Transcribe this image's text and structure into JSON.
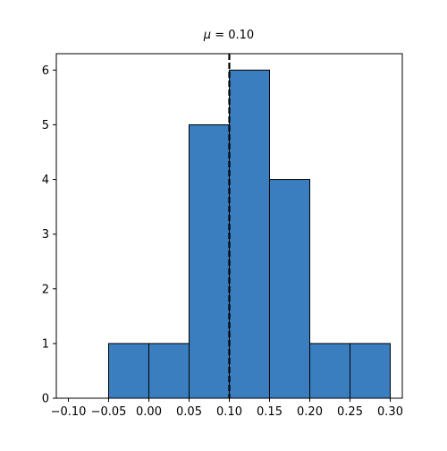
{
  "chart_data": {
    "type": "bar",
    "title_symbol": "μ",
    "title_rest": " = 0.10",
    "xlabel": "",
    "ylabel": "",
    "bin_edges": [
      -0.05,
      0.0,
      0.05,
      0.1,
      0.15,
      0.2,
      0.25,
      0.3
    ],
    "counts": [
      1,
      1,
      5,
      6,
      4,
      1,
      1
    ],
    "xlim": [
      -0.115,
      0.315
    ],
    "ylim": [
      0,
      6.3
    ],
    "xticks": [
      -0.1,
      -0.05,
      0.0,
      0.05,
      0.1,
      0.15,
      0.2,
      0.25,
      0.3
    ],
    "xtick_labels": [
      "−0.10",
      "−0.05",
      "0.00",
      "0.05",
      "0.10",
      "0.15",
      "0.20",
      "0.25",
      "0.30"
    ],
    "yticks": [
      0,
      1,
      2,
      3,
      4,
      5,
      6
    ],
    "ytick_labels": [
      "0",
      "1",
      "2",
      "3",
      "4",
      "5",
      "6"
    ],
    "mean_line": 0.1,
    "grid": false,
    "colors": {
      "bar_fill": "#3a7ebf",
      "bar_edge": "#000000",
      "mean_line": "#000000",
      "axes": "#000000"
    }
  }
}
